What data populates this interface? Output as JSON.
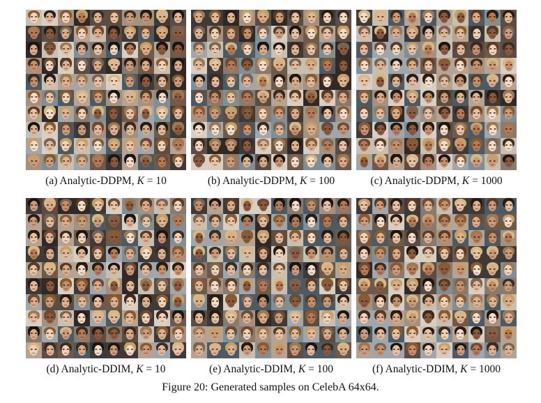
{
  "figure": {
    "caption": "Figure 20: Generated samples on CelebA 64x64."
  },
  "panels": [
    {
      "label": "(a) Analytic-DDPM,",
      "k_symbol": "K",
      "eq": "=",
      "k_value": "10"
    },
    {
      "label": "(b) Analytic-DDPM,",
      "k_symbol": "K",
      "eq": "=",
      "k_value": "100"
    },
    {
      "label": "(c) Analytic-DDPM,",
      "k_symbol": "K",
      "eq": "=",
      "k_value": "1000"
    },
    {
      "label": "(d) Analytic-DDIM,",
      "k_symbol": "K",
      "eq": "=",
      "k_value": "10"
    },
    {
      "label": "(e) Analytic-DDIM,",
      "k_symbol": "K",
      "eq": "=",
      "k_value": "100"
    },
    {
      "label": "(f) Analytic-DDIM,",
      "k_symbol": "K",
      "eq": "=",
      "k_value": "1000"
    }
  ],
  "palette": {
    "backgrounds": [
      "#8a7a6e",
      "#5b4d44",
      "#c8bfb3",
      "#3e3a3a",
      "#9fa7ad",
      "#6d5a4a",
      "#b5a493",
      "#2f2a28",
      "#7f8f95",
      "#a69080",
      "#d7cfc4",
      "#4c5a63"
    ],
    "hair": [
      "#2a1b12",
      "#5a3a22",
      "#8b5a2b",
      "#c9a063",
      "#1b1410",
      "#6e4a30",
      "#a07850",
      "#3b2a1e",
      "#d8b880",
      "#7a6552"
    ],
    "skin": [
      "#e6c2a4",
      "#d9ab88",
      "#c68f6b",
      "#f0d2b8",
      "#b47a58",
      "#e2b89a",
      "#8a5a3e",
      "#dcb392",
      "#f3dcc8",
      "#c99b7b"
    ]
  }
}
